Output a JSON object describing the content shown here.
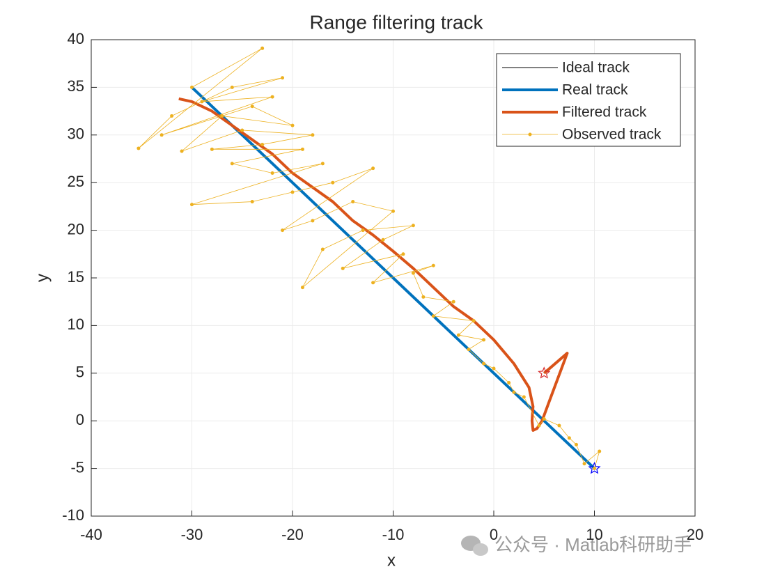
{
  "chart_data": {
    "type": "line",
    "title": "Range filtering track",
    "xlabel": "x",
    "ylabel": "y",
    "xlim": [
      -40,
      20
    ],
    "xticks": [
      -40,
      -30,
      -20,
      -10,
      0,
      10,
      20
    ],
    "ylim": [
      -10,
      40
    ],
    "yticks": [
      -10,
      -5,
      0,
      5,
      10,
      15,
      20,
      25,
      30,
      35,
      40
    ],
    "grid": true,
    "legend": "northeast",
    "series": [
      {
        "name": "Ideal track",
        "color": "#000000",
        "x": [
          -30,
          10
        ],
        "values": [
          35,
          -5
        ]
      },
      {
        "name": "Real track",
        "color": "#0072BD",
        "x": [
          -30,
          10
        ],
        "values": [
          35,
          -5
        ]
      },
      {
        "name": "Filtered track",
        "color": "#D95319",
        "x": [
          5,
          7.3,
          5.5,
          4.8,
          4.3,
          3.9,
          3.8,
          3.9,
          3.5,
          2,
          0,
          -2,
          -4,
          -6,
          -8,
          -10,
          -12,
          -14,
          -16,
          -18,
          -20,
          -22,
          -24,
          -26,
          -28,
          -30,
          -31.3
        ],
        "values": [
          5,
          7.1,
          2,
          0,
          -0.8,
          -1,
          0,
          1.5,
          3.5,
          6,
          8.5,
          10.5,
          12,
          14,
          16,
          17.8,
          19.5,
          21,
          23,
          24.5,
          26,
          28,
          29.5,
          31,
          32.5,
          33.5,
          33.8
        ]
      },
      {
        "name": "Observed track",
        "color": "#EDB120",
        "x": [
          10,
          10.5,
          9,
          8.2,
          7.5,
          6.5,
          5,
          4.5,
          3,
          2,
          1.5,
          0,
          -1,
          -2.5,
          -1,
          -3.5,
          -2,
          -6,
          -4,
          -7,
          -8,
          -6,
          -12,
          -9,
          -15,
          -11,
          -8,
          -13,
          -17,
          -19,
          -10,
          -14,
          -18,
          -21,
          -12,
          -16,
          -20,
          -24,
          -30,
          -17,
          -22,
          -26,
          -19,
          -28,
          -23,
          -18,
          -25,
          -31,
          -27,
          -20,
          -24,
          -33,
          -22,
          -29,
          -21,
          -26,
          -32,
          -35.3,
          -23,
          -30
        ],
        "values": [
          -5,
          -3.2,
          -4.5,
          -2.5,
          -1.8,
          -0.5,
          0.2,
          -0.5,
          2.5,
          3,
          4,
          5.5,
          6,
          7.5,
          8.5,
          9,
          10.5,
          11,
          12.5,
          13,
          15.5,
          16.3,
          14.5,
          17.5,
          16,
          19,
          20.5,
          20,
          18,
          14,
          22,
          23,
          21,
          20,
          26.5,
          25,
          24,
          23,
          22.7,
          27,
          26,
          27,
          28.5,
          28.5,
          29,
          30,
          30.5,
          28.3,
          32,
          31,
          33,
          30,
          34,
          33.5,
          36,
          35,
          32,
          28.6,
          39.1,
          35
        ]
      }
    ],
    "markers": [
      {
        "x": 5,
        "y": 5,
        "color": "#D62728"
      },
      {
        "x": 10,
        "y": -5,
        "color": "#0000FF"
      }
    ]
  },
  "watermark": "公众号 · Matlab科研助手"
}
